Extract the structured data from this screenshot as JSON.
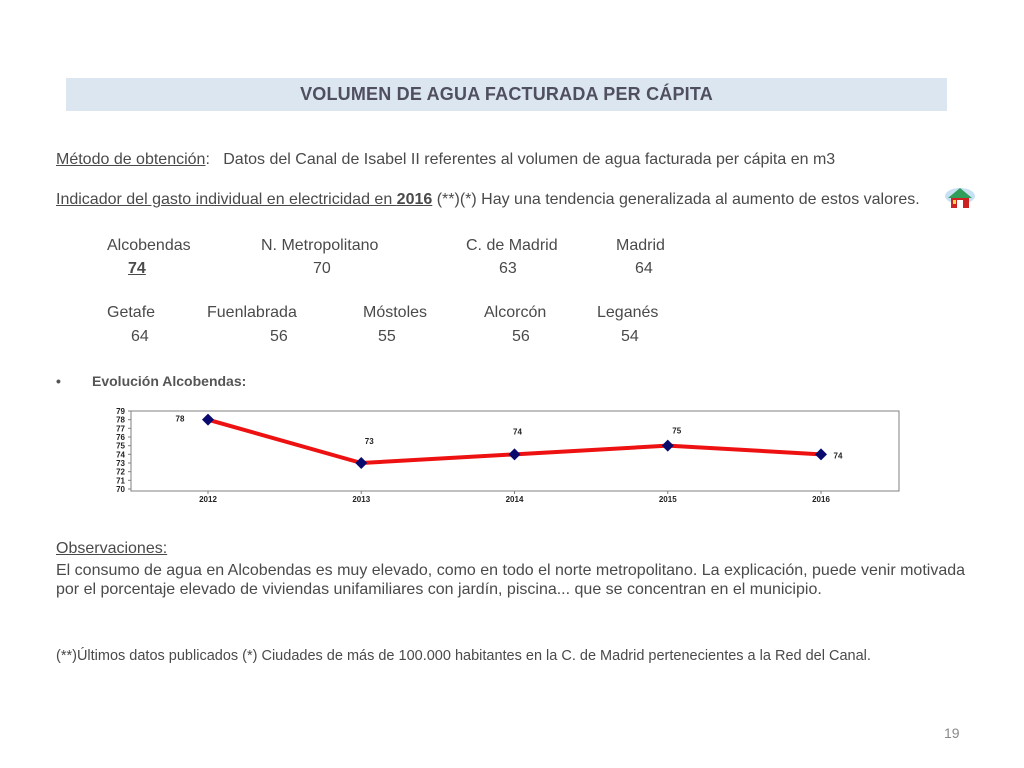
{
  "slide": {
    "title": "VOLUMEN DE AGUA FACTURADA PER CÁPITA",
    "method_label": "Método de obtención",
    "method_colon": ":",
    "method_text": "Datos del Canal de Isabel II referentes al volumen de agua facturada per cápita  en m3",
    "indicator_text_a": "Indicador del gasto individual en electricidad en ",
    "indicator_year": "2016",
    "indicator_text_b": " (**)(*) Hay una tendencia generalizada al aumento de estos valores.",
    "page_number": "19"
  },
  "comparison_row1": {
    "labels": [
      "Alcobendas",
      "N. Metropolitano",
      "C. de Madrid",
      "Madrid"
    ],
    "values": [
      "74",
      "70",
      "63",
      "64"
    ]
  },
  "comparison_row2": {
    "labels": [
      "Getafe",
      "Fuenlabrada",
      "Móstoles",
      "Alcorcón",
      "Leganés"
    ],
    "values": [
      "64",
      "56",
      "55",
      "56",
      "54"
    ]
  },
  "bullet": {
    "symbol": "•",
    "text": "Evolución Alcobendas:"
  },
  "chart_data": {
    "type": "line",
    "categories": [
      "2012",
      "2013",
      "2014",
      "2015",
      "2016"
    ],
    "series": [
      {
        "values": [
          78,
          73,
          74,
          75,
          74
        ],
        "color": "#ee1111",
        "marker_color": "#0a0a6e"
      }
    ],
    "data_labels": [
      "78",
      "73",
      "74",
      "75",
      "74"
    ],
    "y_ticks": [
      "70",
      "71",
      "72",
      "73",
      "74",
      "75",
      "76",
      "77",
      "78",
      "79"
    ],
    "ylim": [
      70,
      79
    ],
    "grid": false,
    "title": "",
    "xlabel": "",
    "ylabel": ""
  },
  "observations": {
    "title": "Observaciones:",
    "text": "El consumo de agua en Alcobendas es muy elevado, como en todo el norte metropolitano. La explicación, puede venir motivada por el porcentaje elevado de viviendas unifamiliares con jardín, piscina... que se concentran en el municipio."
  },
  "footnote": "(**)Últimos datos publicados (*) Ciudades de más de 100.000 habitantes en la C. de Madrid pertenecientes a la Red del Canal.",
  "icons": {
    "logo": "house-logo-icon"
  }
}
